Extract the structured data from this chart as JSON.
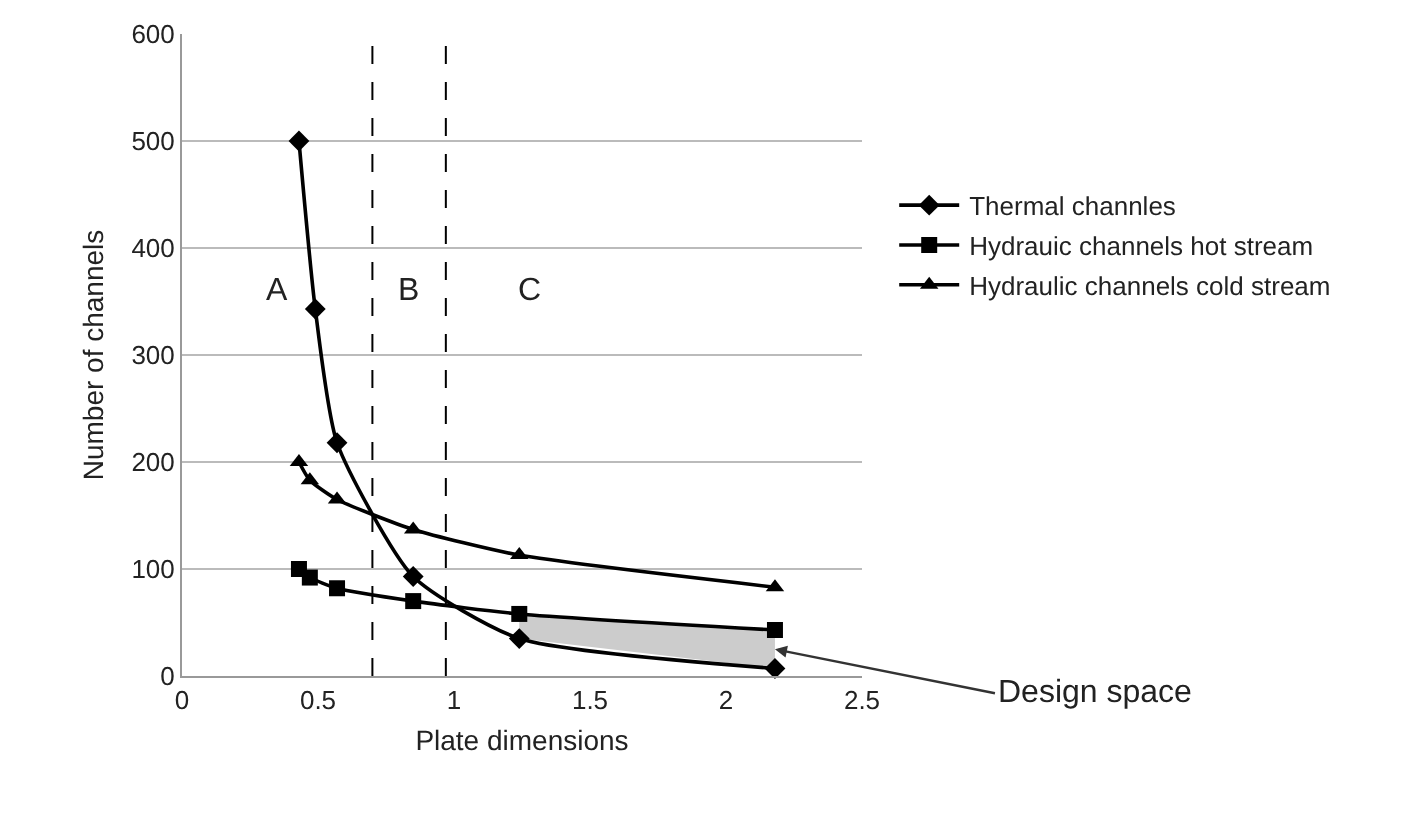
{
  "chart_data": {
    "type": "line",
    "xlabel": "Plate dimensions",
    "ylabel": "Number of channels",
    "xlim": [
      0,
      2.5
    ],
    "xticks": [
      0,
      0.5,
      1,
      1.5,
      2,
      2.5
    ],
    "ylim": [
      0,
      600
    ],
    "yticks": [
      0,
      100,
      200,
      300,
      400,
      500,
      600
    ],
    "grid": "y",
    "legend": "right",
    "line_style": "solid",
    "series": [
      {
        "name": "Thermal channles",
        "color": "#000000",
        "marker": "diamond",
        "x": [
          0.43,
          0.49,
          0.57,
          0.85,
          1.24,
          2.18
        ],
        "values": [
          500,
          343,
          218,
          93,
          35,
          7
        ]
      },
      {
        "name": "Hydrauic channels hot stream",
        "color": "#000000",
        "marker": "square",
        "x": [
          0.43,
          0.47,
          0.57,
          0.85,
          1.24,
          2.18
        ],
        "values": [
          100,
          92,
          82,
          70,
          58,
          43
        ],
        "lower": [
          null,
          null,
          null,
          null,
          35,
          7
        ],
        "upper": [
          null,
          null,
          null,
          null,
          58,
          43
        ]
      },
      {
        "name": "Hydraulic channels cold stream",
        "color": "#000000",
        "marker": "triangle",
        "x": [
          0.43,
          0.47,
          0.57,
          0.85,
          1.24,
          2.18
        ],
        "values": [
          200,
          183,
          165,
          137,
          113,
          83
        ]
      }
    ],
    "ref_lines": [
      {
        "axis": "x",
        "value": 0.7,
        "line_style": "dashed",
        "color": "#000000"
      },
      {
        "axis": "x",
        "value": 0.97,
        "line_style": "dashed",
        "color": "#000000"
      }
    ],
    "annotations": [
      "A",
      "B",
      "C",
      {
        "text": "Design space",
        "x": 2.18,
        "y": 25
      }
    ]
  }
}
